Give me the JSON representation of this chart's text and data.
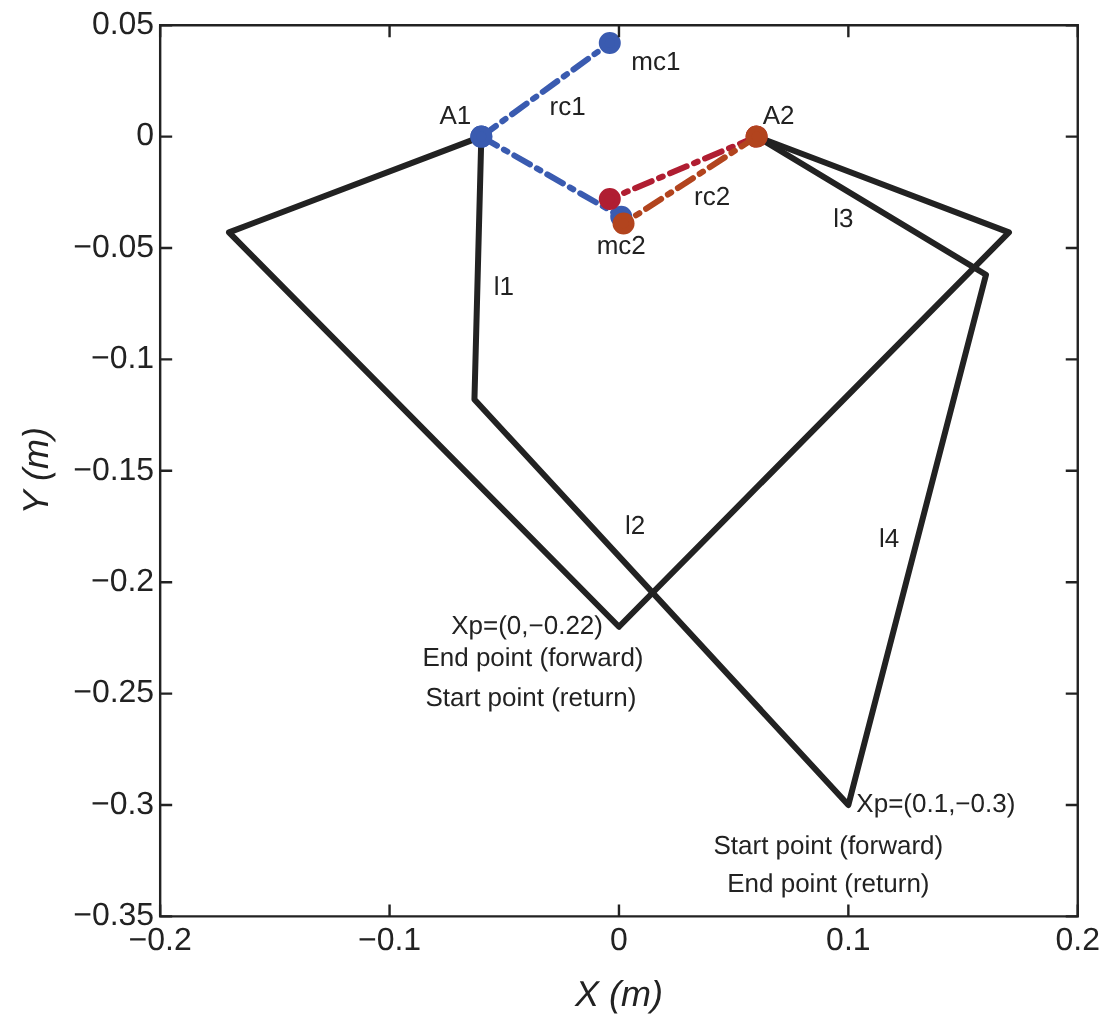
{
  "chart_data": {
    "type": "line",
    "xlabel": "X (m)",
    "ylabel": "Y (m)",
    "xlim": [
      -0.2,
      0.2
    ],
    "xticks": [
      -0.2,
      -0.1,
      0,
      0.1,
      0.2
    ],
    "ylim": [
      -0.35,
      0.05
    ],
    "yticks": [
      -0.35,
      -0.3,
      -0.25,
      -0.2,
      -0.15,
      -0.1,
      -0.05,
      0,
      0.05
    ],
    "grid": false,
    "legend": false,
    "series": [
      {
        "color": "#222222",
        "x": [
          -0.06,
          -0.17,
          0,
          0.17,
          0.06
        ],
        "values": [
          0,
          -0.043,
          -0.22,
          -0.043,
          0
        ],
        "marker": "none",
        "line_style": "solid"
      },
      {
        "color": "#222222",
        "x": [
          -0.06,
          -0.063,
          0.1,
          0.16,
          0.06
        ],
        "values": [
          0,
          -0.118,
          -0.3,
          -0.062,
          0
        ],
        "marker": "none",
        "line_style": "solid"
      },
      {
        "color": "#3a5bb0",
        "x": [
          -0.06,
          -0.004
        ],
        "values": [
          0,
          0.042
        ],
        "marker": "circle",
        "line_style": "dashed"
      },
      {
        "color": "#3a5bb0",
        "x": [
          -0.06,
          0.001
        ],
        "values": [
          0,
          -0.036
        ],
        "marker": "circle",
        "line_style": "dashed"
      },
      {
        "color": "#b01e32",
        "x": [
          0.06,
          -0.004
        ],
        "values": [
          0,
          -0.028
        ],
        "marker": "circle",
        "line_style": "dashed"
      },
      {
        "color": "#b2441e",
        "x": [
          0.06,
          0.002
        ],
        "values": [
          0,
          -0.039
        ],
        "marker": "circle",
        "line_style": "dashed"
      }
    ],
    "annotations": [
      {
        "text": "mc1",
        "x": -0.004,
        "y": 0.042
      },
      {
        "text": "rc1",
        "x": -0.032,
        "y": 0.021
      },
      {
        "text": "A1",
        "x": -0.06,
        "y": 0
      },
      {
        "text": "A2",
        "x": 0.06,
        "y": 0
      },
      {
        "text": "rc2",
        "x": 0.031,
        "y": -0.0195
      },
      {
        "text": "l3",
        "x": 0.11,
        "y": -0.031
      },
      {
        "text": "mc2",
        "x": 0.001,
        "y": -0.036
      },
      {
        "text": "l1",
        "x": -0.0615,
        "y": -0.059
      },
      {
        "text": "l2",
        "x": 0.007,
        "y": -0.196
      },
      {
        "text": "l4",
        "x": 0.13,
        "y": -0.181
      },
      {
        "text": "Xp=(0,−0.22)",
        "x": 0,
        "y": -0.22
      },
      {
        "text": "End point (forward)",
        "x": 0,
        "y": -0.22
      },
      {
        "text": "Start point (return)",
        "x": 0,
        "y": -0.22
      },
      {
        "text": "Xp=(0.1,−0.3)",
        "x": 0.1,
        "y": -0.3
      },
      {
        "text": "Start point (forward)",
        "x": 0.1,
        "y": -0.3
      },
      {
        "text": "End point (return)",
        "x": 0.1,
        "y": -0.3
      }
    ]
  }
}
